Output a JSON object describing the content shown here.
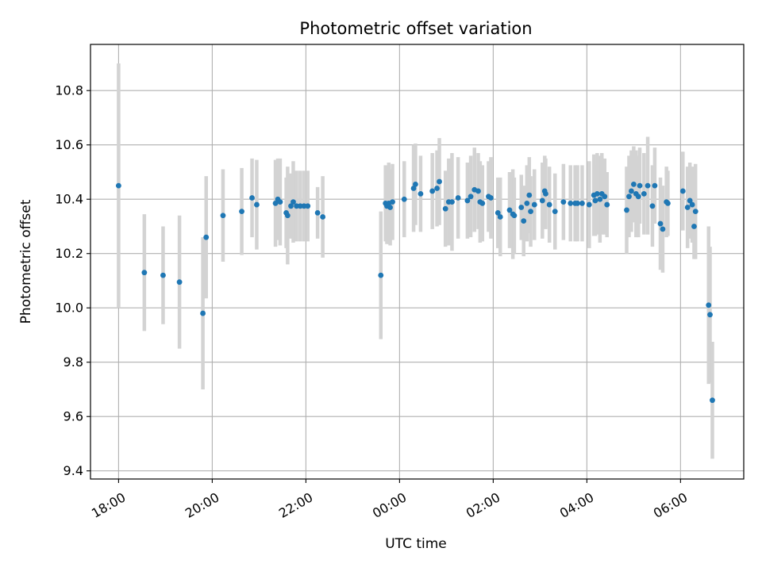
{
  "chart_data": {
    "type": "scatter",
    "title": "Photometric offset variation",
    "xlabel": "UTC time",
    "ylabel": "Photometric offset",
    "x_unit": "hours since 18:00 UTC",
    "xlim": [
      -0.6,
      13.35
    ],
    "ylim": [
      9.37,
      10.97
    ],
    "grid": true,
    "x_ticks": [
      {
        "value": 0,
        "label": "18:00"
      },
      {
        "value": 2,
        "label": "20:00"
      },
      {
        "value": 4,
        "label": "22:00"
      },
      {
        "value": 6,
        "label": "00:00"
      },
      {
        "value": 8,
        "label": "02:00"
      },
      {
        "value": 10,
        "label": "04:00"
      },
      {
        "value": 12,
        "label": "06:00"
      }
    ],
    "y_ticks": [
      {
        "value": 9.4,
        "label": "9.4"
      },
      {
        "value": 9.6,
        "label": "9.6"
      },
      {
        "value": 9.8,
        "label": "9.8"
      },
      {
        "value": 10.0,
        "label": "10.0"
      },
      {
        "value": 10.2,
        "label": "10.2"
      },
      {
        "value": 10.4,
        "label": "10.4"
      },
      {
        "value": 10.6,
        "label": "10.6"
      },
      {
        "value": 10.8,
        "label": "10.8"
      }
    ],
    "colors": {
      "marker": "#1f77b4",
      "errorbar": "#d3d3d3",
      "grid": "#b0b0b0"
    },
    "series": [
      {
        "name": "offset",
        "points": [
          [
            0.0,
            10.45,
            0.45
          ],
          [
            0.55,
            10.13,
            0.215
          ],
          [
            0.95,
            10.12,
            0.18
          ],
          [
            1.3,
            10.095,
            0.245
          ],
          [
            1.8,
            9.98,
            0.28
          ],
          [
            1.87,
            10.26,
            0.225
          ],
          [
            2.23,
            10.34,
            0.17
          ],
          [
            2.63,
            10.355,
            0.16
          ],
          [
            2.85,
            10.405,
            0.145
          ],
          [
            2.95,
            10.38,
            0.165
          ],
          [
            3.35,
            10.385,
            0.16
          ],
          [
            3.4,
            10.4,
            0.15
          ],
          [
            3.45,
            10.39,
            0.16
          ],
          [
            3.58,
            10.35,
            0.13
          ],
          [
            3.61,
            10.34,
            0.18
          ],
          [
            3.68,
            10.375,
            0.12
          ],
          [
            3.73,
            10.39,
            0.15
          ],
          [
            3.8,
            10.375,
            0.13
          ],
          [
            3.88,
            10.375,
            0.13
          ],
          [
            3.96,
            10.375,
            0.13
          ],
          [
            4.04,
            10.375,
            0.13
          ],
          [
            4.25,
            10.35,
            0.095
          ],
          [
            4.36,
            10.335,
            0.15
          ],
          [
            5.6,
            10.12,
            0.235
          ],
          [
            5.7,
            10.385,
            0.14
          ],
          [
            5.73,
            10.375,
            0.14
          ],
          [
            5.77,
            10.385,
            0.15
          ],
          [
            5.8,
            10.37,
            0.14
          ],
          [
            5.85,
            10.39,
            0.14
          ],
          [
            6.1,
            10.4,
            0.14
          ],
          [
            6.3,
            10.44,
            0.16
          ],
          [
            6.34,
            10.455,
            0.15
          ],
          [
            6.45,
            10.42,
            0.14
          ],
          [
            6.7,
            10.43,
            0.14
          ],
          [
            6.8,
            10.44,
            0.14
          ],
          [
            6.85,
            10.465,
            0.16
          ],
          [
            6.98,
            10.365,
            0.14
          ],
          [
            7.05,
            10.39,
            0.16
          ],
          [
            7.12,
            10.39,
            0.18
          ],
          [
            7.25,
            10.405,
            0.15
          ],
          [
            7.45,
            10.395,
            0.14
          ],
          [
            7.52,
            10.41,
            0.15
          ],
          [
            7.6,
            10.435,
            0.155
          ],
          [
            7.68,
            10.43,
            0.14
          ],
          [
            7.72,
            10.39,
            0.15
          ],
          [
            7.77,
            10.385,
            0.14
          ],
          [
            7.9,
            10.41,
            0.13
          ],
          [
            7.95,
            10.405,
            0.15
          ],
          [
            8.1,
            10.35,
            0.13
          ],
          [
            8.15,
            10.335,
            0.145
          ],
          [
            8.35,
            10.36,
            0.14
          ],
          [
            8.42,
            10.345,
            0.165
          ],
          [
            8.45,
            10.34,
            0.14
          ],
          [
            8.6,
            10.37,
            0.12
          ],
          [
            8.65,
            10.32,
            0.13
          ],
          [
            8.72,
            10.385,
            0.14
          ],
          [
            8.77,
            10.415,
            0.14
          ],
          [
            8.8,
            10.355,
            0.13
          ],
          [
            8.88,
            10.38,
            0.13
          ],
          [
            9.05,
            10.395,
            0.14
          ],
          [
            9.1,
            10.43,
            0.13
          ],
          [
            9.12,
            10.42,
            0.13
          ],
          [
            9.2,
            10.38,
            0.14
          ],
          [
            9.32,
            10.355,
            0.14
          ],
          [
            9.5,
            10.39,
            0.14
          ],
          [
            9.65,
            10.385,
            0.14
          ],
          [
            9.75,
            10.385,
            0.14
          ],
          [
            9.8,
            10.385,
            0.14
          ],
          [
            9.9,
            10.385,
            0.14
          ],
          [
            10.05,
            10.38,
            0.16
          ],
          [
            10.15,
            10.415,
            0.15
          ],
          [
            10.18,
            10.395,
            0.13
          ],
          [
            10.22,
            10.42,
            0.15
          ],
          [
            10.28,
            10.4,
            0.16
          ],
          [
            10.32,
            10.42,
            0.15
          ],
          [
            10.38,
            10.41,
            0.14
          ],
          [
            10.43,
            10.38,
            0.12
          ],
          [
            10.85,
            10.36,
            0.16
          ],
          [
            10.9,
            10.41,
            0.15
          ],
          [
            10.95,
            10.43,
            0.15
          ],
          [
            11.0,
            10.455,
            0.14
          ],
          [
            11.05,
            10.42,
            0.16
          ],
          [
            11.1,
            10.41,
            0.15
          ],
          [
            11.13,
            10.45,
            0.14
          ],
          [
            11.22,
            10.42,
            0.15
          ],
          [
            11.3,
            10.45,
            0.18
          ],
          [
            11.4,
            10.375,
            0.15
          ],
          [
            11.45,
            10.45,
            0.14
          ],
          [
            11.57,
            10.31,
            0.17
          ],
          [
            11.62,
            10.29,
            0.16
          ],
          [
            11.7,
            10.39,
            0.13
          ],
          [
            11.73,
            10.385,
            0.12
          ],
          [
            12.05,
            10.43,
            0.145
          ],
          [
            12.15,
            10.37,
            0.15
          ],
          [
            12.2,
            10.395,
            0.14
          ],
          [
            12.25,
            10.38,
            0.14
          ],
          [
            12.29,
            10.3,
            0.12
          ],
          [
            12.32,
            10.355,
            0.175
          ],
          [
            12.6,
            10.01,
            0.29
          ],
          [
            12.63,
            9.975,
            0.25
          ],
          [
            12.68,
            9.66,
            0.215
          ]
        ]
      }
    ]
  }
}
